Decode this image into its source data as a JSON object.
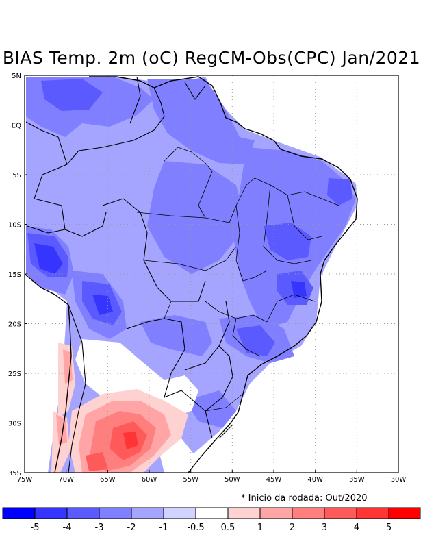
{
  "title": "BIAS Temp. 2m (oC) RegCM-Obs(CPC) Jan/2021",
  "footnote": "* Inicio da rodada: Out/2020",
  "map": {
    "lon_range": [
      -75,
      -30
    ],
    "lat_range": [
      -35,
      5
    ],
    "lat_labels": [
      "5N",
      "EQ",
      "5S",
      "10S",
      "15S",
      "20S",
      "25S",
      "30S",
      "35S"
    ],
    "lon_labels": [
      "75W",
      "70W",
      "65W",
      "60W",
      "55W",
      "50W",
      "45W",
      "40W",
      "35W",
      "30W"
    ],
    "grid": "dotted"
  },
  "colorbar": {
    "colors": [
      "#0000ff",
      "#3535ff",
      "#5a5aff",
      "#7f7fff",
      "#a5a5ff",
      "#d2d2ff",
      "#ffffff",
      "#ffd2d2",
      "#ffa5a5",
      "#ff7f7f",
      "#ff5a5a",
      "#ff3535",
      "#ff0000"
    ],
    "labels": [
      "-5",
      "-4",
      "-3",
      "-2",
      "-1",
      "-0.5",
      "0.5",
      "1",
      "2",
      "3",
      "4",
      "5"
    ]
  }
}
